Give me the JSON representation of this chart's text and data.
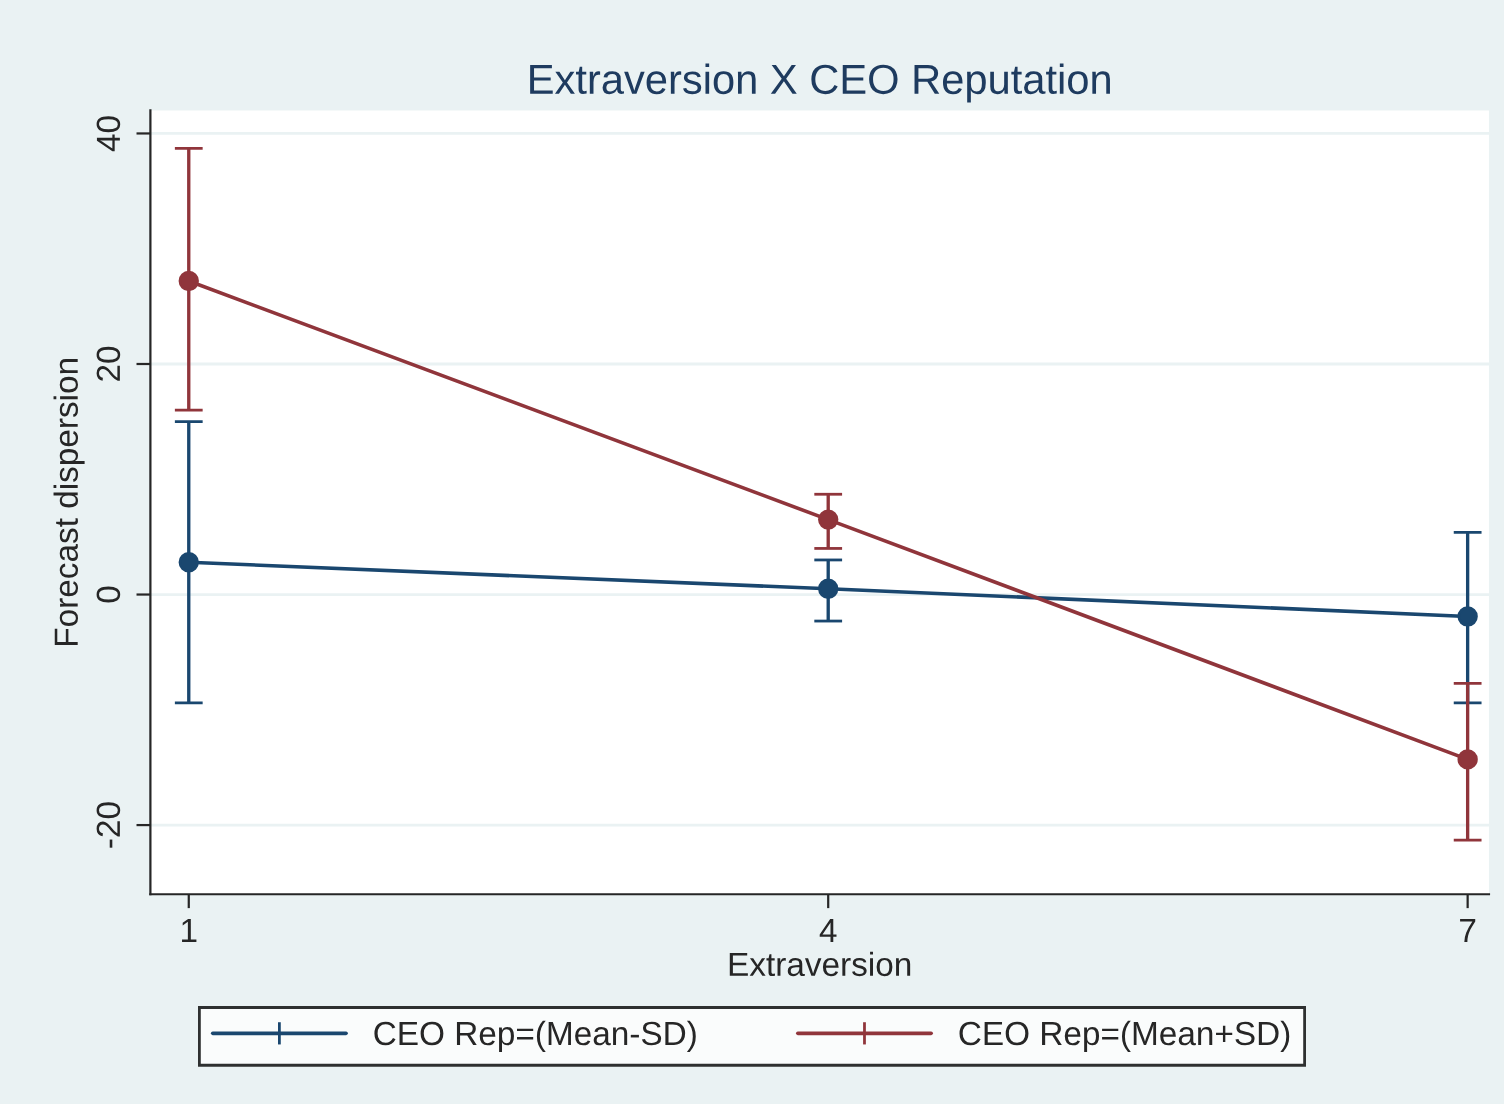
{
  "chart_data": {
    "type": "line",
    "title": "Extraversion X CEO Reputation",
    "xlabel": "Extraversion",
    "ylabel": "Forecast dispersion",
    "x": [
      1,
      4,
      7
    ],
    "series": [
      {
        "name": "CEO Rep=(Mean-SD)",
        "color": "#1a476f",
        "values": [
          2.8,
          0.5,
          -1.9
        ],
        "errors": [
          [
            -9.4,
            15.0
          ],
          [
            -2.3,
            3.0
          ],
          [
            -9.4,
            5.4
          ]
        ]
      },
      {
        "name": "CEO Rep=(Mean+SD)",
        "color": "#90353b",
        "values": [
          27.2,
          6.5,
          -14.3
        ],
        "errors": [
          [
            16.0,
            38.7
          ],
          [
            4.0,
            8.7
          ],
          [
            -21.3,
            -7.7
          ]
        ]
      }
    ],
    "xlim": [
      0.82,
      7.1
    ],
    "xticks": [
      1,
      4,
      7
    ],
    "ylim": [
      -26,
      42
    ],
    "yticks": [
      -20,
      0,
      20,
      40
    ],
    "grid": "y",
    "legend": "bottom",
    "marker": "circle",
    "line_style": "solid"
  }
}
